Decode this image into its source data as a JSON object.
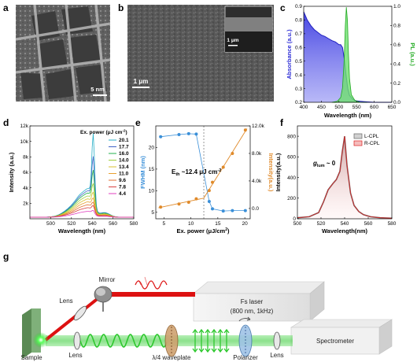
{
  "panels": {
    "a": {
      "label": "a",
      "scalebar": "5 nm"
    },
    "b": {
      "label": "b",
      "scalebar": "1 μm",
      "inset_scalebar": "1 μm"
    },
    "c": {
      "label": "c"
    },
    "d": {
      "label": "d"
    },
    "e": {
      "label": "e",
      "annotation": "E",
      "annotation_sub": "th",
      "annotation_value": " ~12.4 μJ cm",
      "annotation_sup": "-2"
    },
    "f": {
      "label": "f",
      "annotation": "g",
      "annotation_sub": "lum",
      "annotation_value": " ~ 0"
    },
    "g": {
      "label": "g"
    }
  },
  "setup": {
    "mirror": "Mirror",
    "lens_top": "Lens",
    "lens_left": "Lens",
    "lens_right": "Lens",
    "sample": "Sample",
    "laser_line1": "Fs laser",
    "laser_line2": "(800 nm, 1kHz)",
    "waveplate": "λ/4 waveplate",
    "polarizer": "Polarizer",
    "spectrometer": "Spectrometer"
  },
  "colors": {
    "absorbance": "#2f2fd6",
    "pl": "#22cc22",
    "fwhm": "#3a8fd8",
    "intensity": "#e08a2a",
    "lcpl": "#666666",
    "rcpl": "#dd2222",
    "beam_red": "#dd1111",
    "beam_green": "#2ec82e"
  },
  "chart_data": [
    {
      "panel": "c",
      "type": "area",
      "xlabel": "Wavelength (nm)",
      "ylabel": "Absorbance (a.u.)",
      "ylabel_right": "PL (a.u.)",
      "xlim": [
        400,
        650
      ],
      "ylim": [
        0.2,
        0.9
      ],
      "ylim_right": [
        0.0,
        1.0
      ],
      "xticks": [
        400,
        450,
        500,
        550,
        600,
        650
      ],
      "yticks": [
        0.2,
        0.3,
        0.4,
        0.5,
        0.6,
        0.7,
        0.8,
        0.9
      ],
      "yticks_right": [
        0.0,
        0.2,
        0.4,
        0.6,
        0.8,
        1.0
      ],
      "series": [
        {
          "x": [
            400,
            410,
            420,
            430,
            440,
            450,
            460,
            470,
            480,
            490,
            500,
            505,
            510,
            515,
            520,
            525,
            530,
            540,
            550,
            570,
            600,
            650
          ],
          "values": [
            0.86,
            0.8,
            0.76,
            0.73,
            0.71,
            0.69,
            0.68,
            0.665,
            0.65,
            0.64,
            0.62,
            0.62,
            0.6,
            0.52,
            0.4,
            0.3,
            0.25,
            0.22,
            0.21,
            0.205,
            0.2,
            0.2
          ]
        },
        {
          "x": [
            480,
            495,
            505,
            510,
            515,
            518,
            521,
            524,
            527,
            530,
            535,
            545,
            560,
            580
          ],
          "values": [
            0.0,
            0.01,
            0.05,
            0.15,
            0.45,
            0.8,
            0.99,
            0.85,
            0.5,
            0.25,
            0.08,
            0.02,
            0.0,
            0.0
          ]
        }
      ]
    },
    {
      "panel": "d",
      "type": "line",
      "xlabel": "Wavelength (nm)",
      "ylabel": "Intensity (a.u.)",
      "legend_title": "Ex. power (μJ cm",
      "legend_title_sup": "-2",
      "legend_title_end": ")",
      "xlim": [
        480,
        580
      ],
      "ylim": [
        0,
        12000
      ],
      "xticks": [
        500,
        520,
        540,
        560,
        580
      ],
      "yticks": [
        2000,
        4000,
        6000,
        8000,
        10000,
        12000
      ],
      "ytick_labels": [
        "2k",
        "4k",
        "6k",
        "8k",
        "10k",
        "12k"
      ],
      "series": [
        {
          "name": "20.1",
          "color": "#2ab0c8",
          "base": 3900,
          "peak": 11400
        },
        {
          "name": "17.7",
          "color": "#3f63c8",
          "base": 3600,
          "peak": 8400
        },
        {
          "name": "16.0",
          "color": "#22b14c",
          "base": 3300,
          "peak": 6600
        },
        {
          "name": "14.0",
          "color": "#a0d040",
          "base": 2900,
          "peak": 4800
        },
        {
          "name": "13.4",
          "color": "#d8c030",
          "base": 2500,
          "peak": 3600
        },
        {
          "name": "11.0",
          "color": "#e8a030",
          "base": 2100,
          "peak": 2800
        },
        {
          "name": "9.6",
          "color": "#e07030",
          "base": 1700,
          "peak": 2200
        },
        {
          "name": "7.8",
          "color": "#d84040",
          "base": 1300,
          "peak": 1700
        },
        {
          "name": "4.4",
          "color": "#e040c0",
          "base": 800,
          "peak": 1000
        }
      ]
    },
    {
      "panel": "e",
      "type": "scatter",
      "xlabel": "Ex. power (μJ/cm",
      "xlabel_sup": "2",
      "xlabel_end": ")",
      "ylabel": "FWHM (nm)",
      "ylabel_right": "Intensity(a.u.)",
      "xlim": [
        3.5,
        21
      ],
      "ylim": [
        3.5,
        25
      ],
      "ylim_right": [
        -1500,
        12000
      ],
      "xticks": [
        5,
        10,
        15,
        20
      ],
      "yticks": [
        5,
        10,
        15,
        20
      ],
      "yticks_right": [
        0,
        4000,
        8000,
        12000
      ],
      "ytick_right_labels": [
        "0.0",
        "4.0k",
        "8.0k",
        "12.0k"
      ],
      "series": [
        {
          "name": "FWHM",
          "x": [
            4.4,
            7.8,
            9.6,
            11.0,
            13.4,
            14.0,
            16.0,
            17.7,
            20.1
          ],
          "values": [
            22.5,
            23.0,
            23.2,
            23.1,
            7.5,
            5.8,
            5.3,
            5.4,
            5.4
          ]
        },
        {
          "name": "Intensity",
          "x": [
            4.4,
            7.8,
            9.6,
            11.0,
            13.4,
            14.0,
            16.0,
            17.7,
            20.1
          ],
          "values": [
            200,
            650,
            900,
            1400,
            2600,
            3800,
            6000,
            8000,
            11400
          ]
        }
      ]
    },
    {
      "panel": "f",
      "type": "line",
      "xlabel": "Wavelength(nm)",
      "ylabel": "Intensity(a.u.)",
      "xlim": [
        500,
        580
      ],
      "ylim": [
        0,
        900
      ],
      "xticks": [
        500,
        520,
        540,
        560,
        580
      ],
      "yticks": [
        0,
        200,
        400,
        600,
        800
      ],
      "series": [
        {
          "name": "L-CPL",
          "color": "#666666"
        },
        {
          "name": "R-CPL",
          "color": "#dd2222"
        }
      ],
      "x": [
        500,
        510,
        518,
        522,
        526,
        530,
        533,
        536,
        538,
        540,
        542,
        545,
        548,
        552,
        556,
        562,
        570,
        580
      ],
      "values": [
        10,
        20,
        60,
        160,
        280,
        340,
        380,
        460,
        650,
        800,
        520,
        250,
        130,
        70,
        40,
        20,
        10,
        5
      ]
    }
  ]
}
